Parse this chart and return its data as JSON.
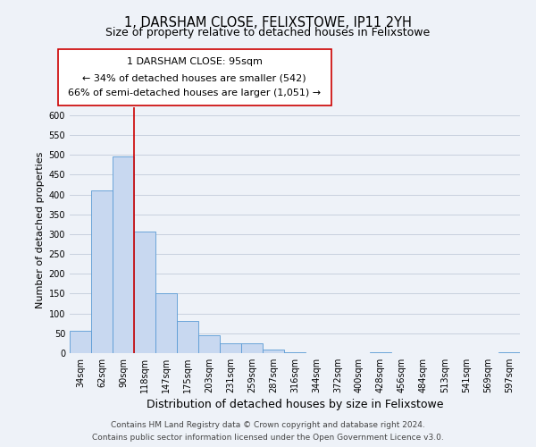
{
  "title": "1, DARSHAM CLOSE, FELIXSTOWE, IP11 2YH",
  "subtitle": "Size of property relative to detached houses in Felixstowe",
  "xlabel": "Distribution of detached houses by size in Felixstowe",
  "ylabel": "Number of detached properties",
  "bar_labels": [
    "34sqm",
    "62sqm",
    "90sqm",
    "118sqm",
    "147sqm",
    "175sqm",
    "203sqm",
    "231sqm",
    "259sqm",
    "287sqm",
    "316sqm",
    "344sqm",
    "372sqm",
    "400sqm",
    "428sqm",
    "456sqm",
    "484sqm",
    "513sqm",
    "541sqm",
    "569sqm",
    "597sqm"
  ],
  "bar_heights": [
    57,
    410,
    495,
    307,
    150,
    82,
    44,
    25,
    25,
    10,
    2,
    0,
    0,
    0,
    2,
    0,
    0,
    0,
    0,
    0,
    2
  ],
  "bar_color": "#c8d8f0",
  "bar_edge_color": "#5a9bd5",
  "vline_x": 2.5,
  "vline_color": "#cc0000",
  "annotation_title": "1 DARSHAM CLOSE: 95sqm",
  "annotation_line1": "← 34% of detached houses are smaller (542)",
  "annotation_line2": "66% of semi-detached houses are larger (1,051) →",
  "annotation_box_color": "#ffffff",
  "annotation_box_edge": "#cc0000",
  "ylim": [
    0,
    620
  ],
  "yticks": [
    0,
    50,
    100,
    150,
    200,
    250,
    300,
    350,
    400,
    450,
    500,
    550,
    600
  ],
  "footer_line1": "Contains HM Land Registry data © Crown copyright and database right 2024.",
  "footer_line2": "Contains public sector information licensed under the Open Government Licence v3.0.",
  "bg_color": "#eef2f8",
  "plot_bg_color": "#eef2f8",
  "grid_color": "#c8d0de",
  "title_fontsize": 10.5,
  "subtitle_fontsize": 9,
  "xlabel_fontsize": 9,
  "ylabel_fontsize": 8,
  "tick_fontsize": 7,
  "footer_fontsize": 6.5,
  "annotation_fontsize": 8
}
